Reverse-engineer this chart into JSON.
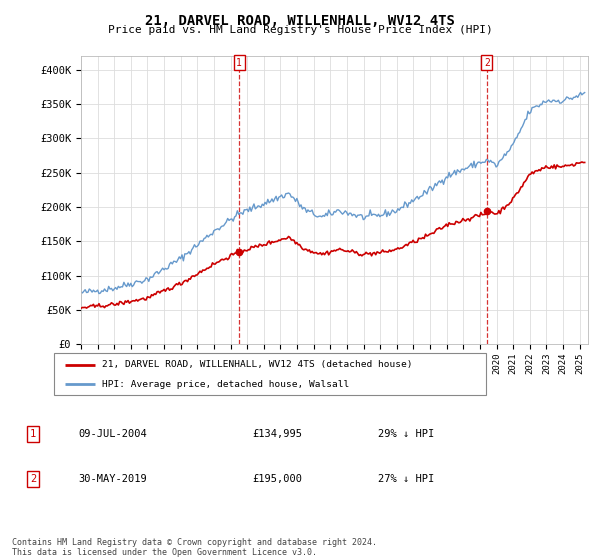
{
  "title": "21, DARVEL ROAD, WILLENHALL, WV12 4TS",
  "subtitle": "Price paid vs. HM Land Registry's House Price Index (HPI)",
  "ylabel_ticks": [
    "£0",
    "£50K",
    "£100K",
    "£150K",
    "£200K",
    "£250K",
    "£300K",
    "£350K",
    "£400K"
  ],
  "ytick_values": [
    0,
    50000,
    100000,
    150000,
    200000,
    250000,
    300000,
    350000,
    400000
  ],
  "ylim": [
    0,
    420000
  ],
  "xlim_start": 1995.0,
  "xlim_end": 2025.5,
  "hpi_color": "#6699cc",
  "price_color": "#cc0000",
  "marker1_date": 2004.52,
  "marker1_price": 134995,
  "marker2_date": 2019.41,
  "marker2_price": 195000,
  "marker1_label": "09-JUL-2004",
  "marker2_label": "30-MAY-2019",
  "marker1_price_label": "£134,995",
  "marker2_price_label": "£195,000",
  "marker1_hpi_label": "29% ↓ HPI",
  "marker2_hpi_label": "27% ↓ HPI",
  "legend_line1": "21, DARVEL ROAD, WILLENHALL, WV12 4TS (detached house)",
  "legend_line2": "HPI: Average price, detached house, Walsall",
  "footer": "Contains HM Land Registry data © Crown copyright and database right 2024.\nThis data is licensed under the Open Government Licence v3.0.",
  "background_color": "#ffffff",
  "grid_color": "#dddddd",
  "hpi_anchors_t": [
    1995.0,
    1997.0,
    1999.0,
    2001.0,
    2003.0,
    2004.5,
    2005.5,
    2007.5,
    2008.5,
    2009.5,
    2010.5,
    2012.0,
    2013.0,
    2014.0,
    2015.0,
    2016.0,
    2017.0,
    2018.0,
    2019.0,
    2019.5,
    2020.0,
    2021.0,
    2022.0,
    2023.0,
    2024.0,
    2025.3
  ],
  "hpi_anchors_v": [
    75000,
    82000,
    95000,
    125000,
    165000,
    190000,
    200000,
    220000,
    195000,
    185000,
    195000,
    185000,
    188000,
    195000,
    210000,
    225000,
    245000,
    255000,
    265000,
    268000,
    260000,
    290000,
    340000,
    355000,
    355000,
    365000
  ]
}
